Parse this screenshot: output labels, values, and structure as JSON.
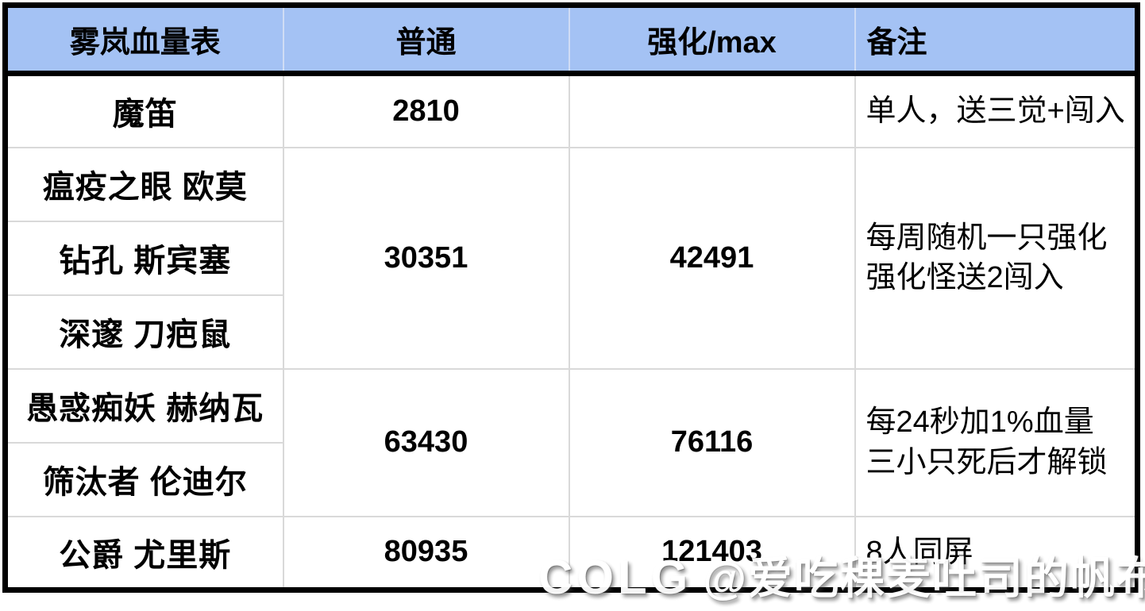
{
  "chart_data": {
    "type": "table",
    "title": "雾岚血量表",
    "columns": [
      "雾岚血量表",
      "普通",
      "强化/max",
      "备注"
    ],
    "rows": [
      {
        "boss": "魔笛",
        "normal": 2810,
        "max": null,
        "note": "单人，送三觉+闯入"
      },
      {
        "boss": "瘟疫之眼 欧莫",
        "normal": 30351,
        "max": 42491,
        "note": "每周随机一只强化 强化怪送2闯入"
      },
      {
        "boss": "钻孔 斯宾塞",
        "normal": 30351,
        "max": 42491,
        "note": "每周随机一只强化 强化怪送2闯入"
      },
      {
        "boss": "深邃 刀疤鼠",
        "normal": 30351,
        "max": 42491,
        "note": "每周随机一只强化 强化怪送2闯入"
      },
      {
        "boss": "愚惑痴妖 赫纳瓦",
        "normal": 63430,
        "max": 76116,
        "note": "每24秒加1%血量 三小只死后才解锁"
      },
      {
        "boss": "筛汰者 伦迪尔",
        "normal": 63430,
        "max": 76116,
        "note": "每24秒加1%血量 三小只死后才解锁"
      },
      {
        "boss": "公爵 尤里斯",
        "normal": 80935,
        "max": 121403,
        "note": "8人同屏"
      }
    ]
  },
  "table": {
    "header": {
      "cols": [
        "雾岚血量表",
        "普通",
        "强化/max",
        "备注"
      ]
    },
    "groups": [
      {
        "names": [
          "魔笛"
        ],
        "normal": "2810",
        "max": "",
        "note_lines": [
          "单人，送三觉+闯入"
        ]
      },
      {
        "names": [
          "瘟疫之眼 欧莫",
          "钻孔 斯宾塞",
          "深邃 刀疤鼠"
        ],
        "normal": "30351",
        "max": "42491",
        "note_lines": [
          "每周随机一只强化",
          "强化怪送2闯入"
        ]
      },
      {
        "names": [
          "愚惑痴妖 赫纳瓦",
          "筛汰者 伦迪尔"
        ],
        "normal": "63430",
        "max": "76116",
        "note_lines": [
          "每24秒加1%血量",
          "三小只死后才解锁"
        ]
      },
      {
        "names": [
          "公爵 尤里斯"
        ],
        "normal": "80935",
        "max": "121403",
        "note_lines": [
          "8人同屏"
        ]
      }
    ]
  },
  "watermark": {
    "logo": "COLG",
    "handle": "@爱吃稞麦吐司的帆布鞋"
  },
  "colors": {
    "header_blue": "#a4c2f4",
    "gridline_gray": "#d9d9d9",
    "border_black": "#000000",
    "watermark_white": "#ffffff"
  }
}
